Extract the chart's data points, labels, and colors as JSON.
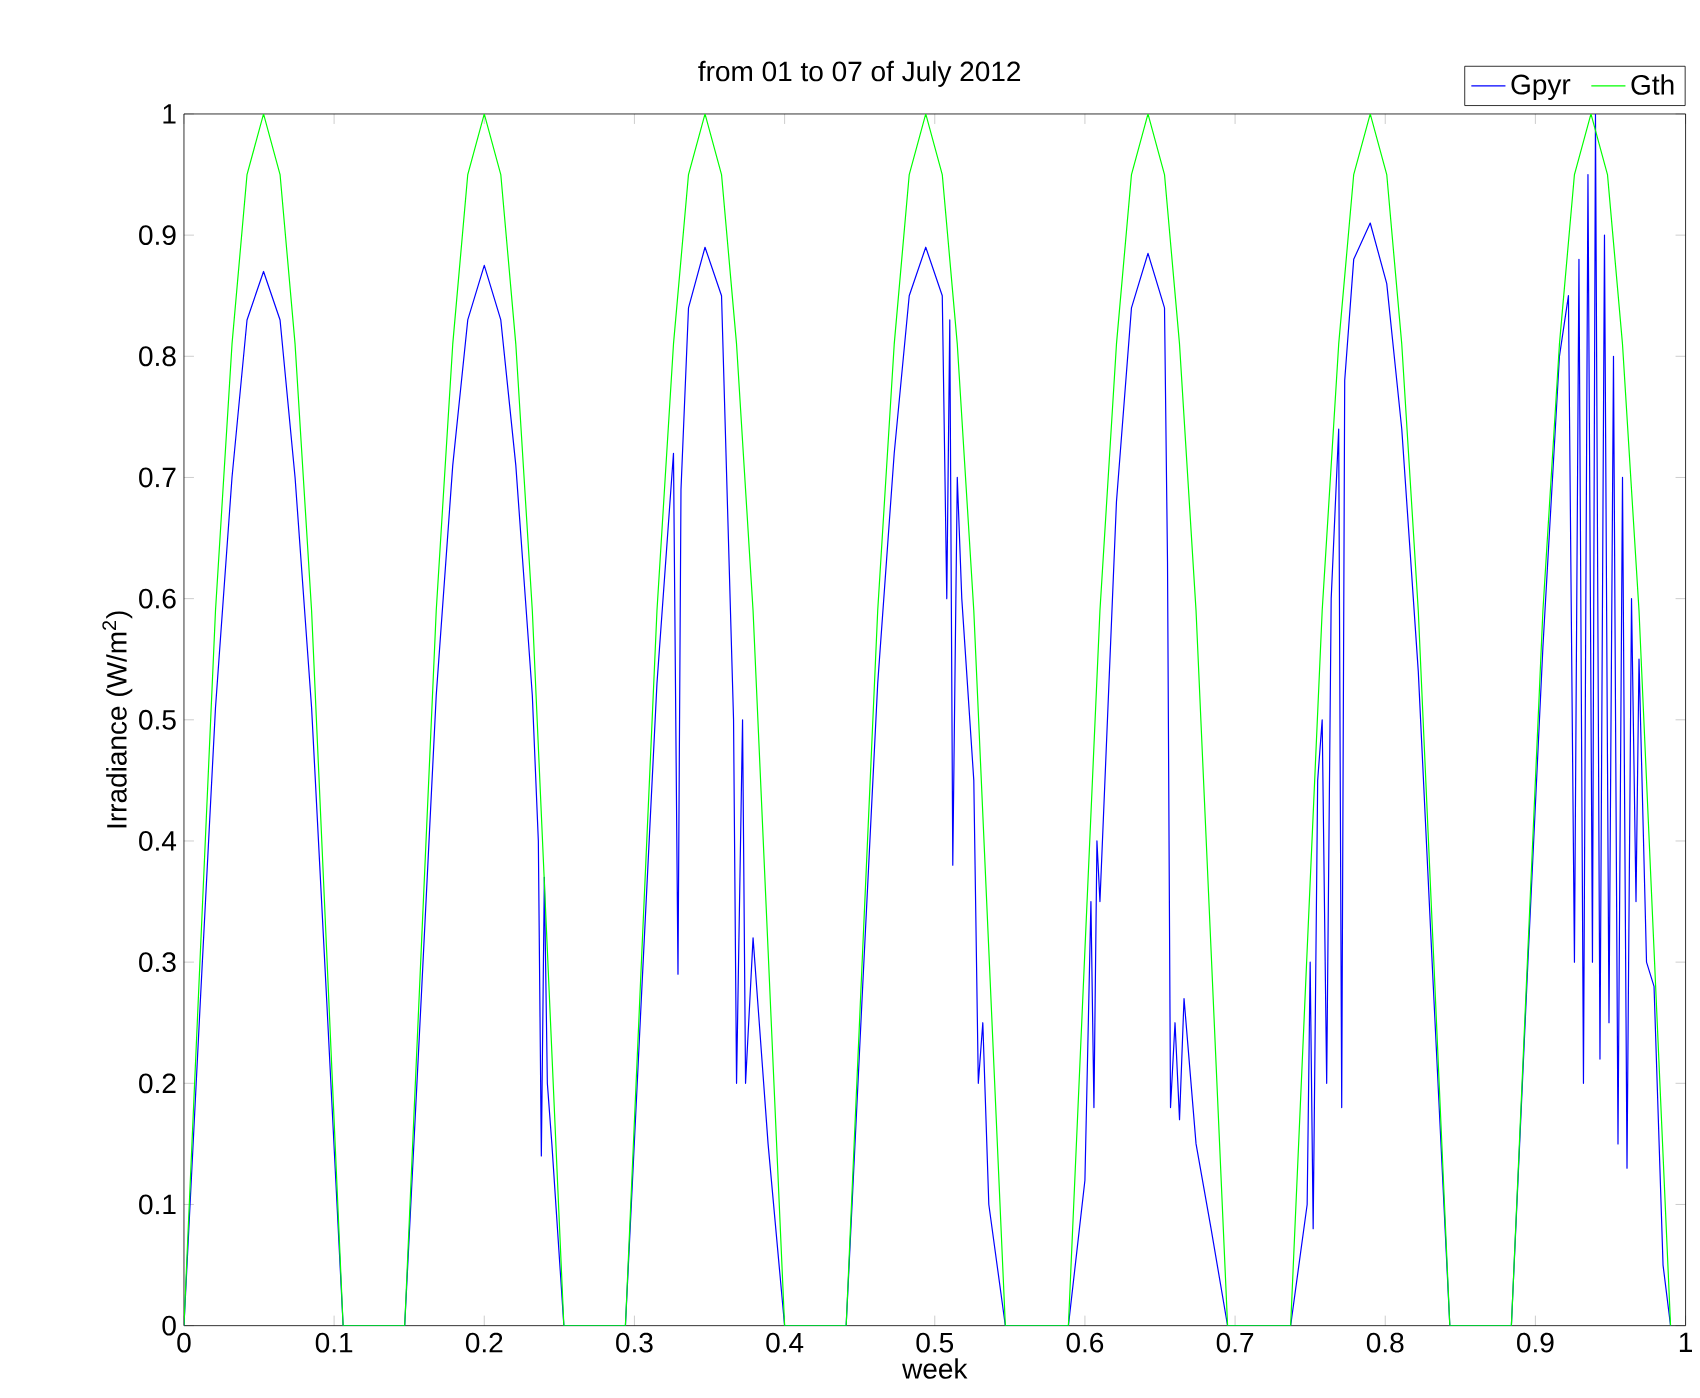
{
  "chart_data": {
    "type": "line",
    "title": "from 01 to 07 of July 2012",
    "xlabel": "week",
    "ylabel": "Irradiance (W/m$^{2}$)",
    "xlim": [
      0,
      1
    ],
    "ylim": [
      0,
      1
    ],
    "xticks": [
      0,
      0.1,
      0.2,
      0.3,
      0.4,
      0.5,
      0.6,
      0.7,
      0.8,
      0.9,
      1
    ],
    "yticks": [
      0,
      0.1,
      0.2,
      0.3,
      0.4,
      0.5,
      0.6,
      0.7,
      0.8,
      0.9,
      1
    ],
    "grid": false,
    "legend": "top right",
    "marker": "none",
    "line_style": "solid",
    "series": [
      {
        "name": "Gpyr",
        "color": "#0000ff",
        "x": [
          0,
          0.011,
          0.021,
          0.032,
          0.042,
          0.053,
          0.064,
          0.074,
          0.085,
          0.095,
          0.106,
          0.147,
          0.158,
          0.168,
          0.179,
          0.189,
          0.2,
          0.211,
          0.221,
          0.232,
          0.236,
          0.238,
          0.24,
          0.242,
          0.245,
          0.253,
          0.294,
          0.305,
          0.315,
          0.326,
          0.329,
          0.331,
          0.336,
          0.347,
          0.358,
          0.366,
          0.368,
          0.372,
          0.374,
          0.379,
          0.389,
          0.4,
          0.441,
          0.452,
          0.462,
          0.473,
          0.483,
          0.494,
          0.505,
          0.508,
          0.51,
          0.512,
          0.515,
          0.518,
          0.526,
          0.529,
          0.532,
          0.536,
          0.547,
          0.589,
          0.6,
          0.604,
          0.606,
          0.608,
          0.61,
          0.621,
          0.631,
          0.642,
          0.653,
          0.655,
          0.657,
          0.66,
          0.663,
          0.666,
          0.674,
          0.684,
          0.695,
          0.737,
          0.748,
          0.75,
          0.752,
          0.755,
          0.758,
          0.761,
          0.764,
          0.769,
          0.771,
          0.773,
          0.779,
          0.79,
          0.801,
          0.811,
          0.822,
          0.832,
          0.843,
          0.884,
          0.895,
          0.905,
          0.916,
          0.922,
          0.926,
          0.929,
          0.932,
          0.935,
          0.938,
          0.94,
          0.943,
          0.946,
          0.949,
          0.952,
          0.955,
          0.958,
          0.961,
          0.964,
          0.967,
          0.969,
          0.974,
          0.979,
          0.985,
          0.99
        ],
        "values": [
          0,
          0.27,
          0.51,
          0.7,
          0.83,
          0.87,
          0.83,
          0.7,
          0.51,
          0.27,
          0,
          0,
          0.27,
          0.52,
          0.71,
          0.83,
          0.875,
          0.83,
          0.71,
          0.52,
          0.4,
          0.14,
          0.37,
          0.2,
          0.15,
          0,
          0,
          0.28,
          0.53,
          0.72,
          0.29,
          0.69,
          0.84,
          0.89,
          0.85,
          0.5,
          0.2,
          0.5,
          0.2,
          0.32,
          0.15,
          0,
          0,
          0.28,
          0.53,
          0.72,
          0.85,
          0.89,
          0.85,
          0.6,
          0.83,
          0.38,
          0.7,
          0.6,
          0.45,
          0.2,
          0.25,
          0.1,
          0,
          0,
          0.12,
          0.35,
          0.18,
          0.4,
          0.35,
          0.68,
          0.84,
          0.885,
          0.84,
          0.63,
          0.18,
          0.25,
          0.17,
          0.27,
          0.15,
          0.08,
          0,
          0,
          0.1,
          0.3,
          0.08,
          0.45,
          0.5,
          0.2,
          0.6,
          0.74,
          0.18,
          0.78,
          0.88,
          0.91,
          0.86,
          0.74,
          0.54,
          0.28,
          0,
          0,
          0.3,
          0.56,
          0.8,
          0.85,
          0.3,
          0.88,
          0.2,
          0.95,
          0.3,
          1.0,
          0.22,
          0.9,
          0.25,
          0.8,
          0.15,
          0.7,
          0.13,
          0.6,
          0.35,
          0.55,
          0.3,
          0.28,
          0.05,
          0
        ]
      },
      {
        "name": "Gth",
        "color": "#00ff00",
        "x": [
          0,
          0.011,
          0.021,
          0.032,
          0.042,
          0.053,
          0.064,
          0.074,
          0.085,
          0.095,
          0.106,
          0.147,
          0.158,
          0.168,
          0.179,
          0.189,
          0.2,
          0.211,
          0.221,
          0.232,
          0.242,
          0.253,
          0.294,
          0.305,
          0.315,
          0.326,
          0.336,
          0.347,
          0.358,
          0.368,
          0.379,
          0.389,
          0.4,
          0.441,
          0.452,
          0.462,
          0.473,
          0.483,
          0.494,
          0.505,
          0.515,
          0.526,
          0.536,
          0.547,
          0.589,
          0.6,
          0.61,
          0.621,
          0.631,
          0.642,
          0.653,
          0.663,
          0.674,
          0.684,
          0.695,
          0.737,
          0.748,
          0.758,
          0.769,
          0.779,
          0.79,
          0.801,
          0.811,
          0.822,
          0.832,
          0.843,
          0.884,
          0.895,
          0.905,
          0.916,
          0.926,
          0.937,
          0.948,
          0.958,
          0.969,
          0.979,
          0.99
        ],
        "values": [
          0,
          0.31,
          0.59,
          0.81,
          0.95,
          1,
          0.95,
          0.81,
          0.59,
          0.31,
          0,
          0,
          0.31,
          0.59,
          0.81,
          0.95,
          1,
          0.95,
          0.81,
          0.59,
          0.31,
          0,
          0,
          0.31,
          0.59,
          0.81,
          0.95,
          1,
          0.95,
          0.81,
          0.59,
          0.31,
          0,
          0,
          0.31,
          0.59,
          0.81,
          0.95,
          1,
          0.95,
          0.81,
          0.59,
          0.31,
          0,
          0,
          0.31,
          0.59,
          0.81,
          0.95,
          1,
          0.95,
          0.81,
          0.59,
          0.31,
          0,
          0,
          0.31,
          0.59,
          0.81,
          0.95,
          1,
          0.95,
          0.81,
          0.59,
          0.31,
          0,
          0,
          0.31,
          0.59,
          0.81,
          0.95,
          1,
          0.95,
          0.81,
          0.59,
          0.31,
          0
        ]
      }
    ]
  }
}
